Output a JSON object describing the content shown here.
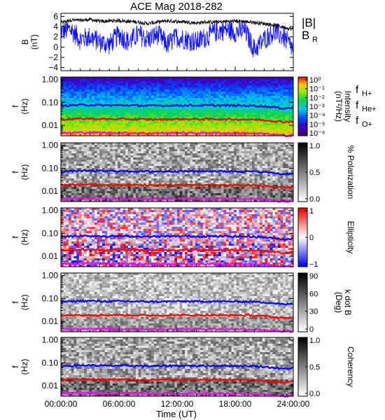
{
  "title": "ACE Mag 2018-282",
  "xaxis": {
    "label": "Time (UT)",
    "range_hours": [
      0,
      24
    ],
    "ticks": [
      {
        "hour": 0,
        "label": "00:00:00"
      },
      {
        "hour": 6,
        "label": "06:00:00"
      },
      {
        "hour": 12,
        "label": "12:00:00"
      },
      {
        "hour": 18,
        "label": "18:00:00"
      },
      {
        "hour": 24,
        "label": "24:00:00"
      }
    ]
  },
  "colors": {
    "Bmag": "#000000",
    "BR": "#1010ff",
    "fH": "#0000ff",
    "fHe": "#ff0000",
    "fO": "#ff00ff"
  },
  "panel1": {
    "ylabel": "B",
    "yunit": "(nT)",
    "ylim": [
      -4.6,
      6.6
    ],
    "ticks": [
      {
        "v": 6,
        "label": "6"
      },
      {
        "v": 4,
        "label": "4"
      },
      {
        "v": 2,
        "label": "2"
      },
      {
        "v": 0,
        "label": "0"
      },
      {
        "v": -2,
        "label": "−2"
      },
      {
        "v": -4,
        "label": "−4"
      }
    ],
    "legend": [
      {
        "text": "|B|",
        "color": "#000000"
      },
      {
        "text": "B",
        "sub": "R",
        "color": "#1010ff"
      }
    ]
  },
  "spec": {
    "ylabel": "f",
    "yunit": "(Hz)",
    "ylim": [
      0.0035,
      1.3
    ],
    "ticks": [
      {
        "v": 1.0,
        "label": "1.00"
      },
      {
        "v": 0.1,
        "label": "0.10"
      },
      {
        "v": 0.01,
        "label": "0.01"
      }
    ]
  },
  "freq_legend": [
    {
      "text": "f",
      "sub": "H+",
      "color": "#0000ff"
    },
    {
      "text": "f",
      "sub": "He+",
      "color": "#ff0000"
    },
    {
      "text": "f",
      "sub": "O+",
      "color": "#ff00ff"
    }
  ],
  "panels": [
    {
      "id": "intensity",
      "colorbar": "rainbow",
      "cb_title": "Intensity",
      "cb_unit": "(nT²/Hz)",
      "cb_ticks": [
        "10⁰",
        "10⁻¹",
        "10⁻²",
        "10⁻³",
        "10⁻⁴",
        "10⁻⁵",
        "10⁻⁶"
      ]
    },
    {
      "id": "polarization",
      "colorbar": "gray",
      "cb_title": "% Polarization",
      "cb_unit": "",
      "cb_ticks": [
        "1.0",
        "0.5",
        "0.0"
      ]
    },
    {
      "id": "ellipticity",
      "colorbar": "bwr",
      "cb_title": "Ellipticity",
      "cb_unit": "",
      "cb_ticks": [
        "1",
        "0",
        "−1"
      ]
    },
    {
      "id": "kdotb",
      "colorbar": "gray",
      "cb_title": "k dot B",
      "cb_unit": "(Deg)",
      "cb_ticks": [
        "90",
        "60",
        "30",
        "0"
      ]
    },
    {
      "id": "coherency",
      "colorbar": "gray",
      "cb_title": "Coherency",
      "cb_unit": "",
      "cb_ticks": [
        "1.0",
        "0.5",
        "0.0"
      ]
    }
  ],
  "chart_data": {
    "type": "line",
    "title": "ACE Mag 2018-282",
    "xlabel": "Time (UT)",
    "x_hours": [
      0,
      1,
      2,
      3,
      4,
      5,
      6,
      7,
      8,
      9,
      10,
      11,
      12,
      13,
      14,
      15,
      16,
      17,
      18,
      19,
      20,
      21,
      22,
      23,
      24
    ],
    "series": [
      {
        "name": "|B|",
        "units": "nT",
        "values": [
          4.8,
          5.3,
          5.2,
          5.4,
          5.0,
          5.1,
          5.2,
          5.0,
          4.9,
          4.6,
          4.9,
          5.1,
          5.0,
          4.9,
          4.7,
          4.9,
          4.9,
          5.0,
          5.1,
          5.0,
          4.8,
          4.6,
          4.3,
          3.9,
          3.5
        ]
      },
      {
        "name": "B_R",
        "units": "nT",
        "values": [
          3.0,
          3.5,
          1.5,
          2.0,
          1.0,
          0.5,
          2.5,
          1.0,
          2.5,
          1.5,
          2.5,
          0.5,
          2.0,
          1.5,
          1.0,
          2.0,
          3.0,
          3.5,
          3.0,
          3.2,
          -0.5,
          1.5,
          3.0,
          2.0,
          -0.5
        ]
      },
      {
        "name": "f_H+",
        "units": "Hz",
        "values": [
          0.072,
          0.075,
          0.078,
          0.078,
          0.076,
          0.075,
          0.076,
          0.075,
          0.074,
          0.073,
          0.073,
          0.074,
          0.075,
          0.075,
          0.074,
          0.075,
          0.075,
          0.074,
          0.074,
          0.073,
          0.072,
          0.068,
          0.062,
          0.055,
          0.06
        ]
      },
      {
        "name": "f_He+",
        "units": "Hz",
        "values": [
          0.018,
          0.019,
          0.0195,
          0.0195,
          0.019,
          0.0188,
          0.019,
          0.0188,
          0.0185,
          0.0183,
          0.0183,
          0.0185,
          0.0188,
          0.0188,
          0.0185,
          0.0188,
          0.0188,
          0.0185,
          0.0185,
          0.0183,
          0.018,
          0.017,
          0.0155,
          0.014,
          0.015
        ]
      },
      {
        "name": "f_O+",
        "units": "Hz",
        "values": [
          0.0045,
          0.0047,
          0.0049,
          0.0049,
          0.0048,
          0.0047,
          0.0048,
          0.0047,
          0.0046,
          0.0046,
          0.0046,
          0.0046,
          0.0047,
          0.0047,
          0.0046,
          0.0047,
          0.0047,
          0.0046,
          0.0046,
          0.0046,
          0.0045,
          0.0043,
          0.0039,
          0.0035,
          0.0037
        ]
      }
    ]
  }
}
